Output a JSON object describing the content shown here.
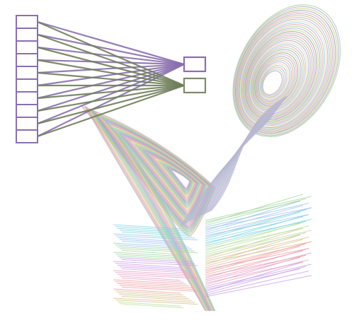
{
  "network": {
    "input_count": 10,
    "output_count": 2,
    "colors": {
      "input_box": "#8a6fae",
      "output_1": "#8a6fae",
      "output_2": "#7d8a6a",
      "edge_to_output_1": "#8a6fae",
      "edge_to_output_2": "#6f7f5c"
    }
  },
  "attractor": {
    "palette": [
      "#b9a4d6",
      "#a8d4a0",
      "#e6a9a9",
      "#9fc8e8",
      "#e8e09a",
      "#c8a0d8",
      "#a0c8b8",
      "#d8b890",
      "#b0b0b0",
      "#e0a8d0",
      "#98a890",
      "#c0d890"
    ],
    "fan_palette": [
      "#7fd6e0",
      "#9cc4f0",
      "#a0d8a0",
      "#c8a0e8",
      "#e8a0c8",
      "#f0a0a0",
      "#d8c090",
      "#b8e0a0"
    ]
  }
}
